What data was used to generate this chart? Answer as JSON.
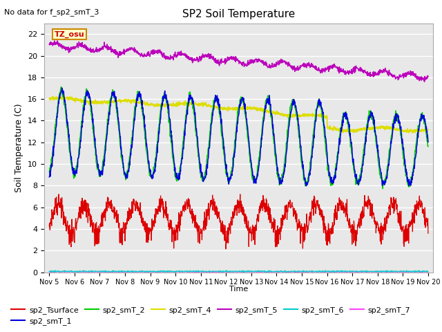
{
  "title": "SP2 Soil Temperature",
  "no_data_text": "No data for f_sp2_smT_3",
  "tz_label": "TZ_osu",
  "ylabel": "Soil Temperature (C)",
  "xlabel": "Time",
  "ylim": [
    0,
    23
  ],
  "yticks": [
    0,
    2,
    4,
    6,
    8,
    10,
    12,
    14,
    16,
    18,
    20,
    22
  ],
  "x_start_days": 4.8,
  "x_end_days": 20.2,
  "x_tick_positions": [
    5,
    6,
    7,
    8,
    9,
    10,
    11,
    12,
    13,
    14,
    15,
    16,
    17,
    18,
    19,
    20
  ],
  "x_tick_labels": [
    "Nov 5",
    "Nov 6",
    "Nov 7",
    "Nov 8",
    "Nov 9",
    "Nov 10",
    "Nov 11",
    "Nov 12",
    "Nov 13",
    "Nov 14",
    "Nov 15",
    "Nov 16",
    "Nov 17",
    "Nov 18",
    "Nov 19",
    "Nov 20"
  ],
  "colors": {
    "sp2_Tsurface": "#dd0000",
    "sp2_smT_1": "#0000dd",
    "sp2_smT_2": "#00cc00",
    "sp2_smT_4": "#dddd00",
    "sp2_smT_5": "#bb00bb",
    "sp2_smT_6": "#00cccc",
    "sp2_smT_7": "#ff44ff"
  },
  "background_color": "#e8e8e8",
  "grid_color": "#ffffff",
  "tz_box_facecolor": "#ffffcc",
  "tz_box_edgecolor": "#cc8800",
  "tz_text_color": "#cc0000",
  "figsize": [
    6.4,
    4.8
  ],
  "dpi": 100
}
